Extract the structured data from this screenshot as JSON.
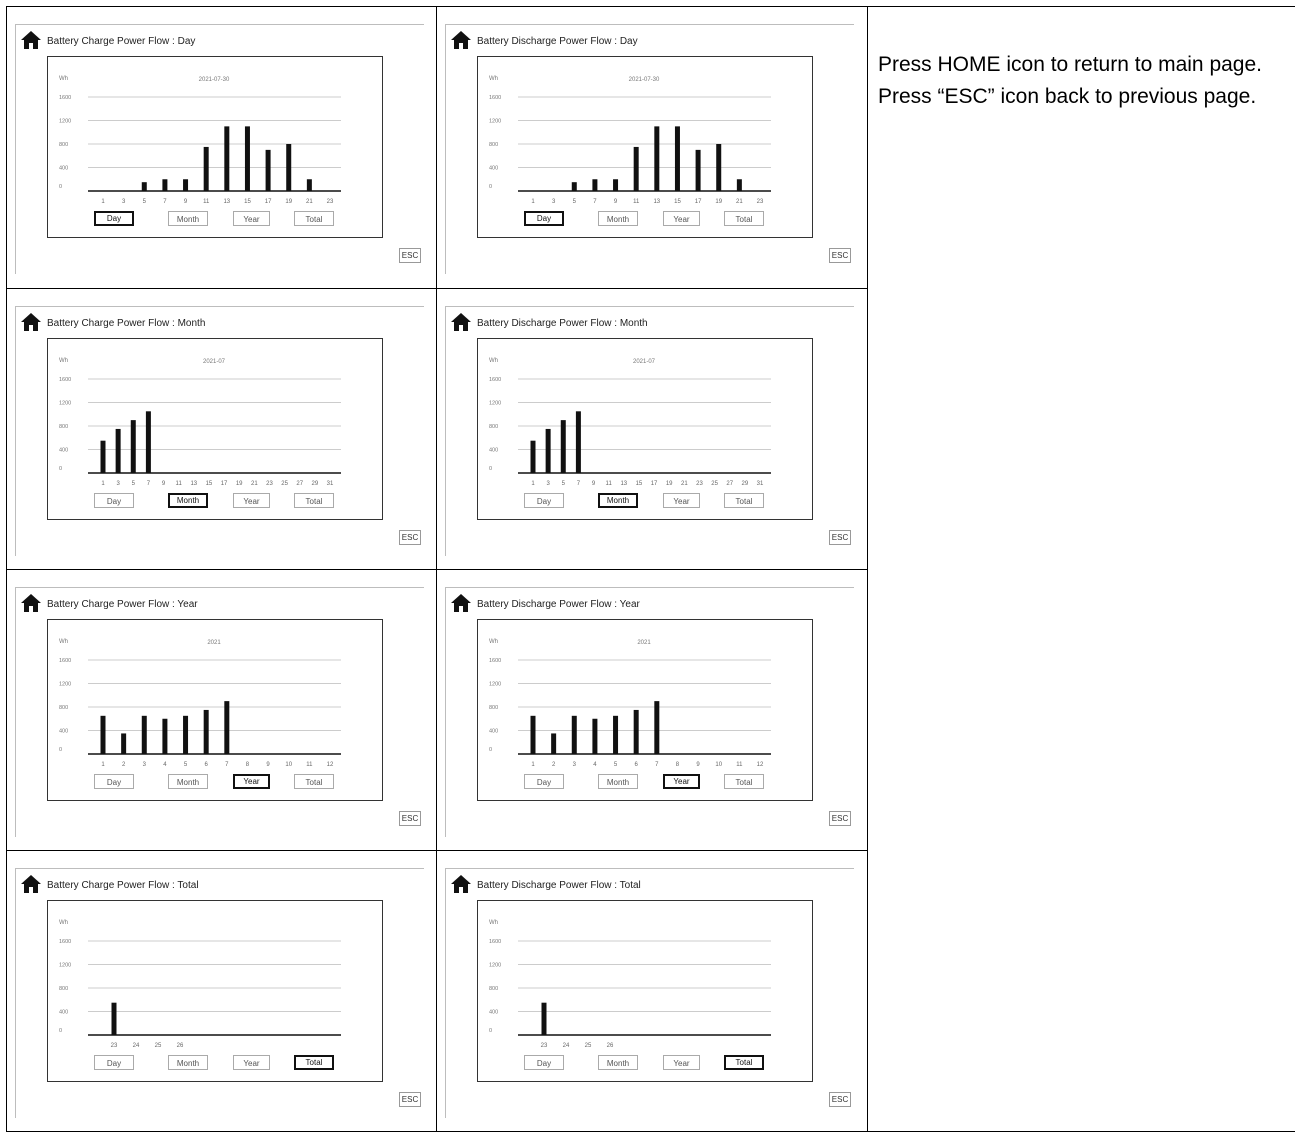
{
  "tabs": [
    "Day",
    "Month",
    "Year",
    "Total"
  ],
  "esc_label": "ESC",
  "description": [
    "Press HOME icon to return to main page.",
    "Press “ESC” icon back to previous page."
  ],
  "screens": [
    {
      "title": "Battery Charge Power Flow : Day",
      "active_tab": "Day",
      "chart_data": {
        "type": "bar",
        "unit": "Wh",
        "date": "2021-07-30",
        "yticks": [
          0,
          400,
          800,
          1200,
          1600
        ],
        "xlabels": [
          "1",
          "3",
          "5",
          "7",
          "9",
          "11",
          "13",
          "15",
          "17",
          "19",
          "21",
          "23"
        ],
        "values": [
          0,
          0,
          150,
          200,
          200,
          750,
          1100,
          1100,
          700,
          800,
          200,
          0
        ]
      }
    },
    {
      "title": "Battery Discharge Power Flow : Day",
      "active_tab": "Day",
      "chart_data": {
        "type": "bar",
        "unit": "Wh",
        "date": "2021-07-30",
        "yticks": [
          0,
          400,
          800,
          1200,
          1600
        ],
        "xlabels": [
          "1",
          "3",
          "5",
          "7",
          "9",
          "11",
          "13",
          "15",
          "17",
          "19",
          "21",
          "23"
        ],
        "values": [
          0,
          0,
          150,
          200,
          200,
          750,
          1100,
          1100,
          700,
          800,
          200,
          0
        ]
      }
    },
    {
      "title": "Battery Charge Power Flow : Month",
      "active_tab": "Month",
      "chart_data": {
        "type": "bar",
        "unit": "Wh",
        "date": "2021-07",
        "yticks": [
          0,
          400,
          800,
          1200,
          1600
        ],
        "xlabels": [
          "1",
          "3",
          "5",
          "7",
          "9",
          "11",
          "13",
          "15",
          "17",
          "19",
          "21",
          "23",
          "25",
          "27",
          "29",
          "31"
        ],
        "values": [
          550,
          750,
          900,
          1050,
          0,
          0,
          0,
          0,
          0,
          0,
          0,
          0,
          0,
          0,
          0,
          0
        ]
      }
    },
    {
      "title": "Battery Discharge Power Flow : Month",
      "active_tab": "Month",
      "chart_data": {
        "type": "bar",
        "unit": "Wh",
        "date": "2021-07",
        "yticks": [
          0,
          400,
          800,
          1200,
          1600
        ],
        "xlabels": [
          "1",
          "3",
          "5",
          "7",
          "9",
          "11",
          "13",
          "15",
          "17",
          "19",
          "21",
          "23",
          "25",
          "27",
          "29",
          "31"
        ],
        "values": [
          550,
          750,
          900,
          1050,
          0,
          0,
          0,
          0,
          0,
          0,
          0,
          0,
          0,
          0,
          0,
          0
        ]
      }
    },
    {
      "title": "Battery Charge Power Flow : Year",
      "active_tab": "Year",
      "chart_data": {
        "type": "bar",
        "unit": "Wh",
        "date": "2021",
        "yticks": [
          0,
          400,
          800,
          1200,
          1600
        ],
        "xlabels": [
          "1",
          "2",
          "3",
          "4",
          "5",
          "6",
          "7",
          "8",
          "9",
          "10",
          "11",
          "12"
        ],
        "values": [
          650,
          350,
          650,
          600,
          650,
          750,
          900,
          0,
          0,
          0,
          0,
          0
        ]
      }
    },
    {
      "title": "Battery Discharge Power Flow : Year",
      "active_tab": "Year",
      "chart_data": {
        "type": "bar",
        "unit": "Wh",
        "date": "2021",
        "yticks": [
          0,
          400,
          800,
          1200,
          1600
        ],
        "xlabels": [
          "1",
          "2",
          "3",
          "4",
          "5",
          "6",
          "7",
          "8",
          "9",
          "10",
          "11",
          "12"
        ],
        "values": [
          650,
          350,
          650,
          600,
          650,
          750,
          900,
          0,
          0,
          0,
          0,
          0
        ]
      }
    },
    {
      "title": "Battery Charge Power Flow : Total",
      "active_tab": "Total",
      "chart_data": {
        "type": "bar",
        "unit": "Wh",
        "date": "",
        "yticks": [
          0,
          400,
          800,
          1200,
          1600
        ],
        "xlabels": [
          "23",
          "24",
          "25",
          "26"
        ],
        "values": [
          550,
          0,
          0,
          0
        ]
      }
    },
    {
      "title": "Battery Discharge Power Flow : Total",
      "active_tab": "Total",
      "chart_data": {
        "type": "bar",
        "unit": "Wh",
        "date": "",
        "yticks": [
          0,
          400,
          800,
          1200,
          1600
        ],
        "xlabels": [
          "23",
          "24",
          "25",
          "26"
        ],
        "values": [
          550,
          0,
          0,
          0
        ]
      }
    }
  ]
}
